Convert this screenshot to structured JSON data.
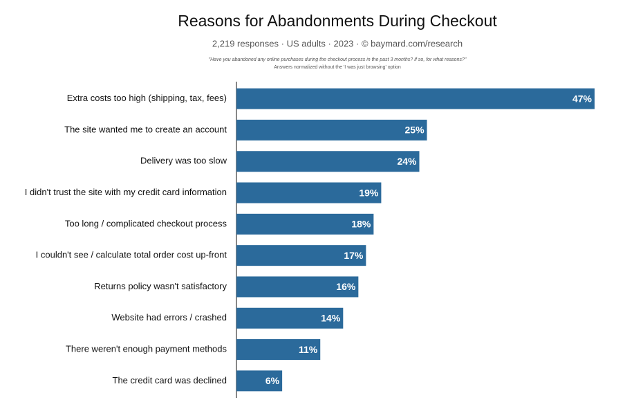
{
  "chart_data": {
    "type": "bar",
    "orientation": "horizontal",
    "title": "Reasons for Abandonments During Checkout",
    "subtitle": "2,219 responses · US adults · 2023 · © baymard.com/research",
    "notes": [
      "\"Have you abandoned any online purchases during the checkout process in the past 3 months? If so, for what reasons?\"",
      "Answers normalized without the 'I was just browsing' option"
    ],
    "categories": [
      "Extra costs too high (shipping, tax, fees)",
      "The site wanted me to create an account",
      "Delivery was too slow",
      "I didn't trust the site with my credit card information",
      "Too long / complicated checkout process",
      "I couldn't see / calculate total order cost up-front",
      "Returns policy wasn't satisfactory",
      "Website had errors / crashed",
      "There weren't enough payment methods",
      "The credit card was declined"
    ],
    "values": [
      47,
      25,
      24,
      19,
      18,
      17,
      16,
      14,
      11,
      6
    ],
    "value_labels": [
      "47%",
      "25%",
      "24%",
      "19%",
      "18%",
      "17%",
      "16%",
      "14%",
      "11%",
      "6%"
    ],
    "color": "#2b6a9b"
  }
}
